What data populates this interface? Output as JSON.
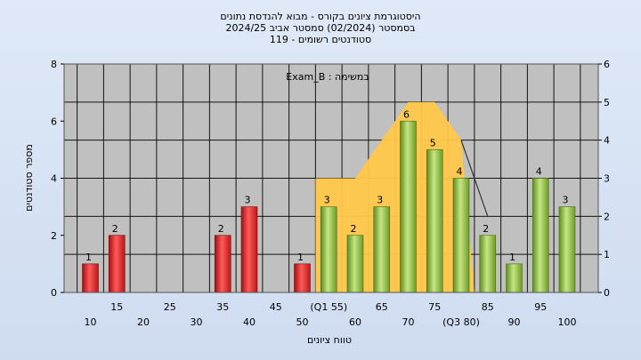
{
  "chart_data": {
    "type": "bar",
    "title_lines": [
      "היסטוגרמת ציונים בקורס - מבוא להנדסת נתונים",
      "בסמסטר  (02/2024)  סמסטר אביב 2024/25",
      "סטודנטים רשומים - 119"
    ],
    "annotation": "במשימה : Exam_B",
    "xlabel": "טווח ציונים",
    "ylabel": "מספר סטודנטים",
    "ylim": [
      0,
      8
    ],
    "yticks": [
      0,
      2,
      4,
      6,
      8
    ],
    "y2lim": [
      0,
      6
    ],
    "y2ticks": [
      0,
      1,
      2,
      3,
      4,
      5,
      6
    ],
    "grid": true,
    "x_tick_labels": [
      {
        "x": 10,
        "label": "10",
        "row": 2
      },
      {
        "x": 15,
        "label": "15",
        "row": 1
      },
      {
        "x": 20,
        "label": "20",
        "row": 2
      },
      {
        "x": 25,
        "label": "25",
        "row": 1
      },
      {
        "x": 30,
        "label": "30",
        "row": 2
      },
      {
        "x": 35,
        "label": "35",
        "row": 1
      },
      {
        "x": 40,
        "label": "40",
        "row": 2
      },
      {
        "x": 45,
        "label": "45",
        "row": 1
      },
      {
        "x": 50,
        "label": "50",
        "row": 2
      },
      {
        "x": 55,
        "label": "(Q1 55)",
        "row": 1
      },
      {
        "x": 60,
        "label": "60",
        "row": 2
      },
      {
        "x": 65,
        "label": "65",
        "row": 1
      },
      {
        "x": 70,
        "label": "70",
        "row": 2
      },
      {
        "x": 75,
        "label": "75",
        "row": 1
      },
      {
        "x": 80,
        "label": "(Q3 80)",
        "row": 2
      },
      {
        "x": 85,
        "label": "85",
        "row": 1
      },
      {
        "x": 90,
        "label": "90",
        "row": 2
      },
      {
        "x": 95,
        "label": "95",
        "row": 1
      },
      {
        "x": 100,
        "label": "100",
        "row": 2
      }
    ],
    "bars": [
      {
        "x": 10,
        "value": 1,
        "group": "fail"
      },
      {
        "x": 15,
        "value": 2,
        "group": "fail"
      },
      {
        "x": 35,
        "value": 2,
        "group": "fail"
      },
      {
        "x": 40,
        "value": 3,
        "group": "fail"
      },
      {
        "x": 50,
        "value": 1,
        "group": "fail"
      },
      {
        "x": 55,
        "value": 3,
        "group": "pass"
      },
      {
        "x": 60,
        "value": 2,
        "group": "pass"
      },
      {
        "x": 65,
        "value": 3,
        "group": "pass"
      },
      {
        "x": 70,
        "value": 6,
        "group": "pass"
      },
      {
        "x": 75,
        "value": 5,
        "group": "pass"
      },
      {
        "x": 80,
        "value": 4,
        "group": "pass"
      },
      {
        "x": 85,
        "value": 2,
        "group": "pass"
      },
      {
        "x": 90,
        "value": 1,
        "group": "pass"
      },
      {
        "x": 95,
        "value": 4,
        "group": "pass"
      },
      {
        "x": 100,
        "value": 3,
        "group": "pass"
      }
    ],
    "iqr_area": {
      "color": "#ffc84a",
      "points": [
        {
          "x": 55,
          "y": 3
        },
        {
          "x": 60,
          "y": 3
        },
        {
          "x": 65,
          "y": 4
        },
        {
          "x": 70,
          "y": 5
        },
        {
          "x": 75,
          "y": 5
        },
        {
          "x": 80,
          "y": 4
        }
      ]
    },
    "density_line": [
      {
        "x": 80,
        "y": 4
      },
      {
        "x": 85,
        "y": 2
      }
    ],
    "colors": {
      "fail": "#e02424",
      "pass": "#8cc040",
      "plot_bg": "#c0c0c0",
      "grid": "#000000",
      "page_bg": "#d8e4f4"
    }
  }
}
